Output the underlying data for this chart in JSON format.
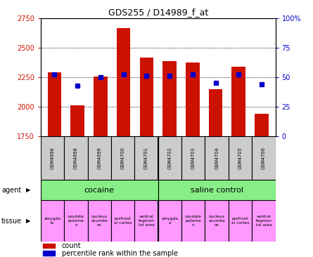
{
  "title": "GDS255 / D14989_f_at",
  "samples": [
    "GSM4696",
    "GSM4698",
    "GSM4699",
    "GSM4700",
    "GSM4701",
    "GSM4702",
    "GSM4703",
    "GSM4704",
    "GSM4705",
    "GSM4706"
  ],
  "counts": [
    2290,
    2010,
    2255,
    2665,
    2415,
    2385,
    2375,
    2145,
    2340,
    1940
  ],
  "percentiles": [
    52,
    43,
    50,
    52,
    51,
    51,
    52,
    45,
    52,
    44
  ],
  "ylim_left": [
    1750,
    2750
  ],
  "ylim_right": [
    0,
    100
  ],
  "yticks_left": [
    1750,
    2000,
    2250,
    2500,
    2750
  ],
  "yticks_right": [
    0,
    25,
    50,
    75,
    100
  ],
  "tissue_labels": [
    "amygda\nla",
    "caudate\nputame\nn",
    "nucleus\nacumbe\nns",
    "prefront\nal cortex",
    "ventral\ntegmen\ntal area",
    "amygda\na",
    "caudate\nputame\nn",
    "nucleus\nacumbe\nns",
    "prefront\nal cortex",
    "ventral\ntegmen\ntal area"
  ],
  "tissue_colors": [
    "#ff99ff",
    "#ff99ff",
    "#ff99ff",
    "#ff99ff",
    "#ff99ff",
    "#ff99ff",
    "#ff99ff",
    "#ff99ff",
    "#ff99ff",
    "#ff99ff"
  ],
  "bar_color": "#cc1100",
  "dot_color": "#0000cc",
  "agent_color": "#88ee88",
  "sample_bg_color": "#cccccc",
  "left_label_color": "#cc1100",
  "right_label_color": "#0000cc",
  "grid_dotted_at": [
    2000,
    2250,
    2500
  ],
  "cocaine_label": "cocaine",
  "saline_label": "saline control",
  "agent_row_label": "agent",
  "tissue_row_label": "tissue",
  "legend_count": "count",
  "legend_pct": "percentile rank within the sample"
}
